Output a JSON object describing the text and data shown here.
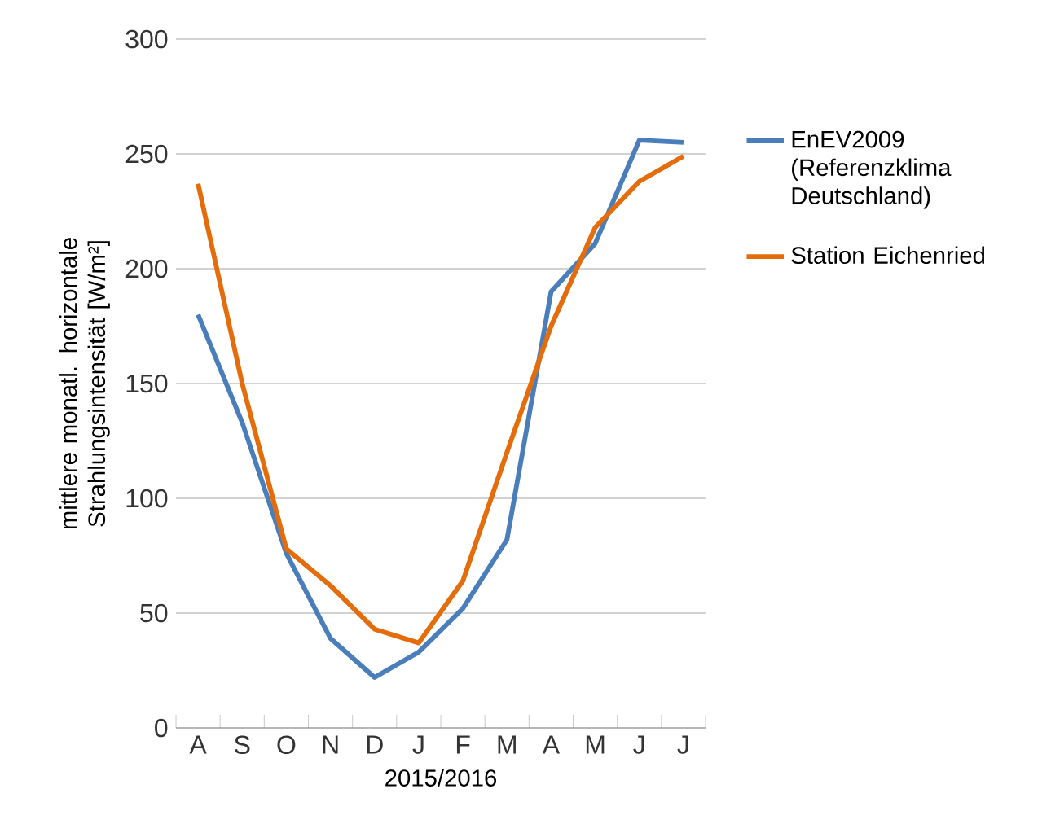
{
  "chart_data": {
    "type": "line",
    "xlabel": "2015/2016",
    "ylabel": "mittlere monatl. horizontale Strahlungsintensität [W/m²]",
    "categories": [
      "A",
      "S",
      "O",
      "N",
      "D",
      "J",
      "F",
      "M",
      "A",
      "M",
      "J",
      "J"
    ],
    "series": [
      {
        "name": "EnEV2009 (Referenzklima Deutschland)",
        "color": "#4a7ebb",
        "values": [
          180,
          133,
          76,
          39,
          22,
          33,
          52,
          82,
          190,
          211,
          256,
          255
        ]
      },
      {
        "name": "Station Eichenried",
        "color": "#e46c0a",
        "values": [
          237,
          150,
          78,
          62,
          43,
          37,
          64,
          120,
          175,
          218,
          238,
          249
        ]
      }
    ],
    "ylim": [
      0,
      300
    ],
    "yticks": [
      0,
      50,
      100,
      150,
      200,
      250,
      300
    ],
    "grid": "y",
    "legend": "right",
    "marker": "none",
    "line_style": "solid"
  }
}
